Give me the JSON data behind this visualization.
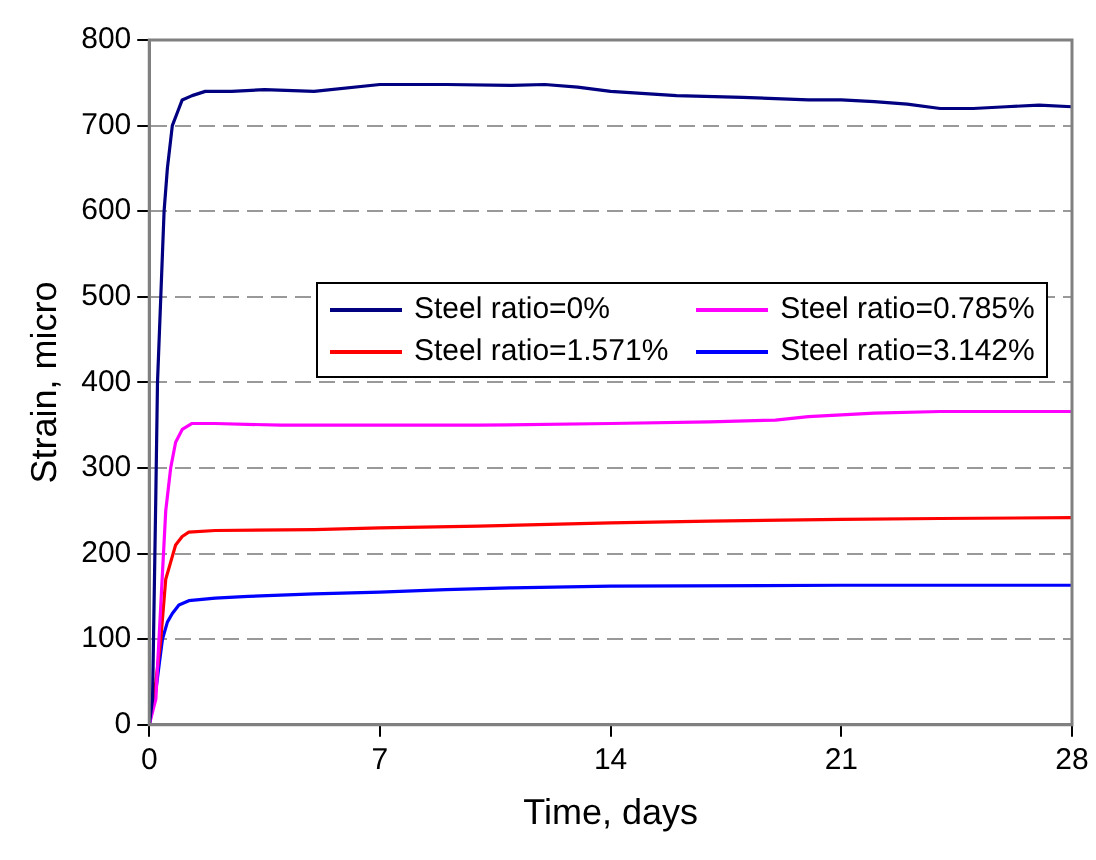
{
  "chart_data": {
    "type": "line",
    "xlabel": "Time, days",
    "ylabel": "Strain, micro",
    "xlim": [
      0,
      28
    ],
    "xticks": [
      0,
      7,
      14,
      21,
      28
    ],
    "ylim": [
      0,
      800
    ],
    "yticks": [
      0,
      100,
      200,
      300,
      400,
      500,
      600,
      700,
      800
    ],
    "grid": "y",
    "legend": "top right",
    "marker": "none",
    "line_style": "solid",
    "series": [
      {
        "name": "Steel ratio=0%",
        "color": "#000080",
        "x": [
          0,
          0.1,
          0.2,
          0.25,
          0.35,
          0.45,
          0.55,
          0.7,
          0.85,
          1,
          1.3,
          1.7,
          2.5,
          3.5,
          5,
          7,
          9,
          11,
          12,
          13,
          14,
          16,
          18,
          20,
          21,
          22,
          23,
          24,
          25,
          26,
          27,
          28
        ],
        "values": [
          0,
          30,
          270,
          400,
          500,
          600,
          650,
          700,
          715,
          730,
          735,
          740,
          740,
          742,
          740,
          748,
          748,
          747,
          748,
          745,
          740,
          735,
          733,
          730,
          730,
          728,
          725,
          720,
          720,
          722,
          724,
          722
        ]
      },
      {
        "name": "Steel ratio=0.785%",
        "color": "#ff00ff",
        "x": [
          0,
          0.2,
          0.35,
          0.5,
          0.65,
          0.8,
          1,
          1.3,
          1.6,
          2,
          4,
          7,
          10,
          14,
          17,
          19,
          20,
          21,
          22,
          24,
          26,
          28
        ],
        "values": [
          0,
          30,
          140,
          250,
          300,
          330,
          345,
          352,
          352,
          352,
          350,
          350,
          350,
          352,
          354,
          356,
          360,
          362,
          364,
          366,
          366,
          366
        ]
      },
      {
        "name": "Steel ratio=1.571%",
        "color": "#ff0000",
        "x": [
          0,
          0.2,
          0.35,
          0.5,
          0.65,
          0.8,
          1,
          1.2,
          2,
          5,
          7,
          10,
          14,
          17,
          21,
          24,
          28
        ],
        "values": [
          0,
          50,
          100,
          170,
          190,
          210,
          220,
          225,
          227,
          228,
          230,
          232,
          236,
          238,
          240,
          241,
          242
        ]
      },
      {
        "name": "Steel ratio=3.142%",
        "color": "#0000ff",
        "x": [
          0,
          0.2,
          0.4,
          0.55,
          0.7,
          0.9,
          1.2,
          2,
          3,
          5,
          7,
          9,
          11,
          14,
          21,
          28
        ],
        "values": [
          0,
          40,
          100,
          120,
          130,
          140,
          145,
          148,
          150,
          153,
          155,
          158,
          160,
          162,
          163,
          163
        ]
      }
    ]
  }
}
